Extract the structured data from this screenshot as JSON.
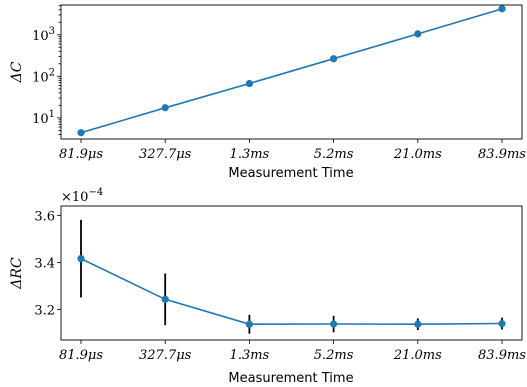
{
  "colors": {
    "series": "#1f77b4",
    "errorbar": "#000000",
    "axis": "#000000"
  },
  "chart_data": [
    {
      "type": "line",
      "categories": [
        "81.9μs",
        "327.7μs",
        "1.3ms",
        "5.2ms",
        "21.0ms",
        "83.9ms"
      ],
      "series": [
        {
          "values": [
            4.4,
            17.5,
            67,
            265,
            1050,
            4200
          ]
        }
      ],
      "xlabel": "Measurement Time",
      "ylabel": "ΔC",
      "yscale": "log",
      "ylim": [
        3.1,
        5200
      ],
      "yticks": [
        10,
        100,
        1000
      ],
      "ytick_base": "10",
      "ytick_exponents": [
        "1",
        "2",
        "3"
      ],
      "grid": false,
      "markers": true
    },
    {
      "type": "line",
      "categories": [
        "81.9μs",
        "327.7μs",
        "1.3ms",
        "5.2ms",
        "21.0ms",
        "83.9ms"
      ],
      "series": [
        {
          "values": [
            3.416,
            3.243,
            3.137,
            3.138,
            3.137,
            3.14
          ],
          "error": [
            0.165,
            0.11,
            0.04,
            0.035,
            0.025,
            0.025
          ]
        }
      ],
      "xlabel": "Measurement Time",
      "ylabel": "ΔRC",
      "ylim": [
        3.07,
        3.64
      ],
      "yticks": [
        3.2,
        3.4,
        3.6
      ],
      "ytick_labels": [
        "3.2",
        "3.4",
        "3.6"
      ],
      "multiplier_base": "×10",
      "multiplier_exp": "−4",
      "grid": false,
      "markers": true
    }
  ]
}
